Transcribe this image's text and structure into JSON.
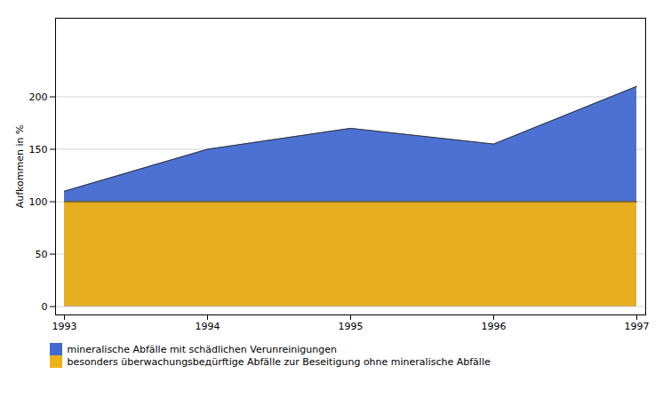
{
  "chart_data": {
    "type": "area",
    "ylabel": "Aufkommen in %",
    "categories": [
      "1993",
      "1994",
      "1995",
      "1996",
      "1997"
    ],
    "series": [
      {
        "name": "mineralische Abfälle mit schädlichen Verunreinigungen",
        "values": [
          110,
          150,
          170,
          155,
          210
        ]
      },
      {
        "name": "besonders überwachungsbедürftige Abfälle zur Beseitigung ohne mineralische Abfälle",
        "values": [
          100,
          100,
          100,
          100,
          100
        ]
      }
    ],
    "stacked": false,
    "ylim": [
      -8,
      275
    ],
    "yticks": [
      0,
      50,
      100,
      150,
      200
    ],
    "grid": true,
    "legend": "lower left"
  }
}
